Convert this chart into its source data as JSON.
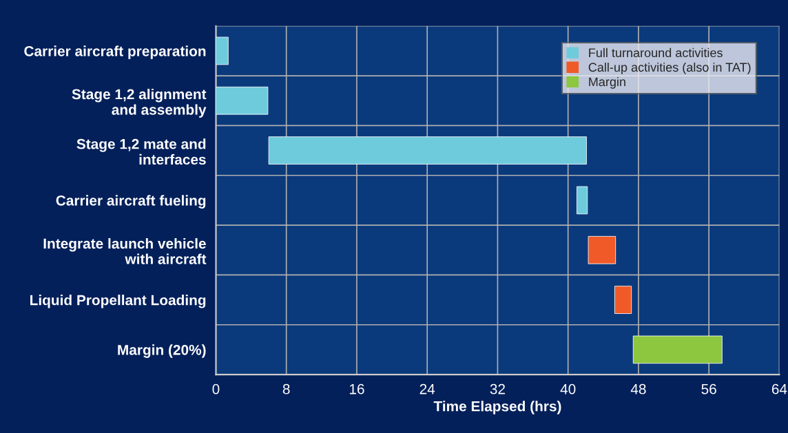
{
  "chart_data": {
    "type": "bar",
    "orientation": "horizontal",
    "xlabel": "Time Elapsed (hrs)",
    "categories": [
      "Carrier aircraft preparation",
      "Stage 1,2 alignment\nand assembly",
      "Stage 1,2 mate and\ninterfaces",
      "Carrier aircraft fueling",
      "Integrate launch vehicle\nwith aircraft",
      "Liquid Propellant Loading",
      "Margin (20%)"
    ],
    "series": [
      {
        "name": "Full turnaround activities",
        "color": "#6ecbdc",
        "base": [
          0,
          0,
          6,
          41,
          null,
          null,
          null
        ],
        "values": [
          1.4,
          5.9,
          36.1,
          1.2,
          null,
          null,
          null
        ]
      },
      {
        "name": "Call-up activities (also in TAT)",
        "color": "#f05a28",
        "base": [
          null,
          null,
          null,
          null,
          42.3,
          45.3,
          null
        ],
        "values": [
          null,
          null,
          null,
          null,
          3.1,
          1.9,
          null
        ]
      },
      {
        "name": "Margin",
        "color": "#8dc63f",
        "base": [
          null,
          null,
          null,
          null,
          null,
          null,
          47.4
        ],
        "values": [
          null,
          null,
          null,
          null,
          null,
          null,
          10.1
        ]
      }
    ],
    "xlim": [
      0,
      64
    ],
    "xticks": [
      0,
      8,
      16,
      24,
      32,
      40,
      48,
      56,
      64
    ],
    "grid": true,
    "legend": "top right"
  }
}
